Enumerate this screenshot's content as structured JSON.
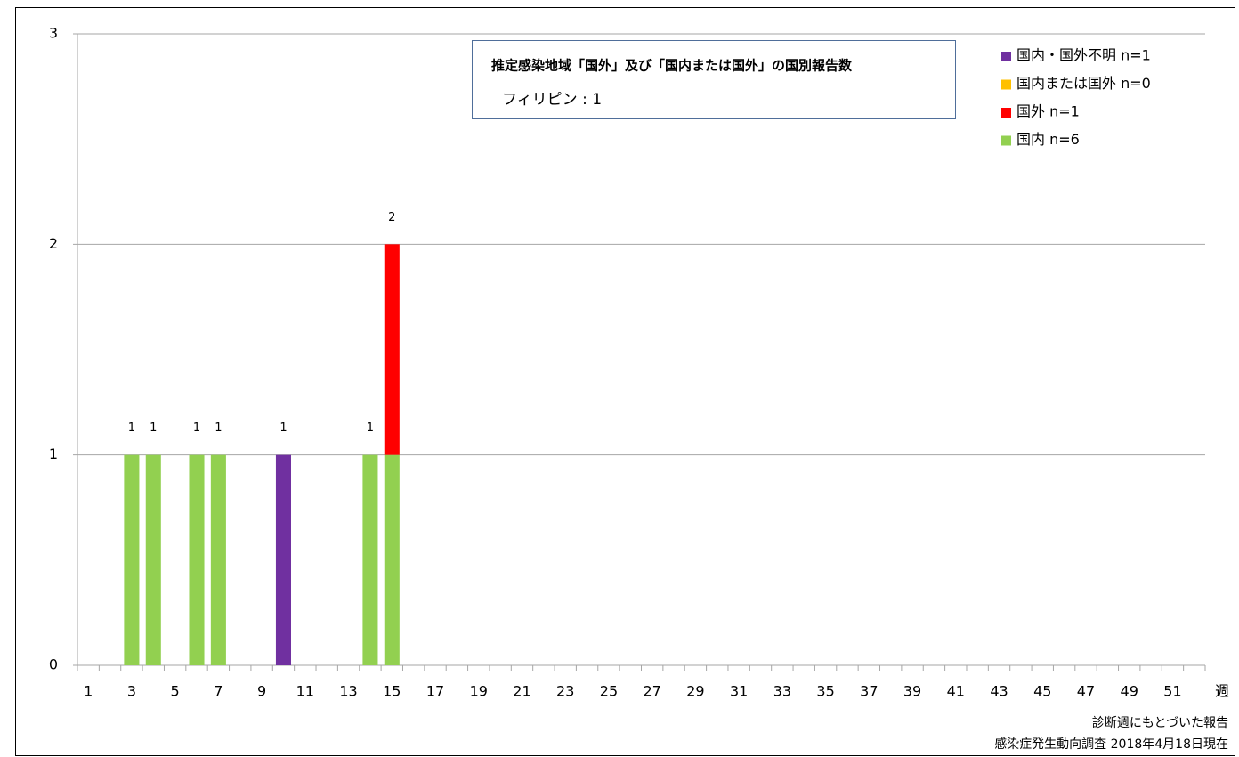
{
  "chart_data": {
    "type": "stacked-bar",
    "categories": [
      1,
      null,
      3,
      null,
      5,
      null,
      7,
      null,
      9,
      null,
      11,
      null,
      13,
      null,
      15,
      null,
      17,
      null,
      19,
      null,
      21,
      null,
      23,
      null,
      25,
      null,
      27,
      null,
      29,
      null,
      31,
      null,
      33,
      null,
      35,
      null,
      37,
      null,
      39,
      null,
      41,
      null,
      43,
      null,
      45,
      null,
      47,
      null,
      49,
      null,
      51,
      null
    ],
    "x_label": "週",
    "series": [
      {
        "name": "国内 n=6",
        "color": "#92d050",
        "values": [
          0,
          0,
          1,
          1,
          0,
          1,
          1,
          0,
          0,
          0,
          0,
          0,
          0,
          1,
          1,
          0,
          0,
          0,
          0,
          0,
          0,
          0,
          0,
          0,
          0,
          0,
          0,
          0,
          0,
          0,
          0,
          0,
          0,
          0,
          0,
          0,
          0,
          0,
          0,
          0,
          0,
          0,
          0,
          0,
          0,
          0,
          0,
          0,
          0,
          0,
          0,
          0
        ]
      },
      {
        "name": "国外 n=1",
        "color": "#ff0000",
        "values": [
          0,
          0,
          0,
          0,
          0,
          0,
          0,
          0,
          0,
          0,
          0,
          0,
          0,
          0,
          1,
          0,
          0,
          0,
          0,
          0,
          0,
          0,
          0,
          0,
          0,
          0,
          0,
          0,
          0,
          0,
          0,
          0,
          0,
          0,
          0,
          0,
          0,
          0,
          0,
          0,
          0,
          0,
          0,
          0,
          0,
          0,
          0,
          0,
          0,
          0,
          0,
          0
        ]
      },
      {
        "name": "国内または国外 n=0",
        "color": "#ffc000",
        "values": [
          0,
          0,
          0,
          0,
          0,
          0,
          0,
          0,
          0,
          0,
          0,
          0,
          0,
          0,
          0,
          0,
          0,
          0,
          0,
          0,
          0,
          0,
          0,
          0,
          0,
          0,
          0,
          0,
          0,
          0,
          0,
          0,
          0,
          0,
          0,
          0,
          0,
          0,
          0,
          0,
          0,
          0,
          0,
          0,
          0,
          0,
          0,
          0,
          0,
          0,
          0,
          0
        ]
      },
      {
        "name": "国内・国外不明 n=1",
        "color": "#7030a0",
        "values": [
          0,
          0,
          0,
          0,
          0,
          0,
          0,
          0,
          0,
          1,
          0,
          0,
          0,
          0,
          0,
          0,
          0,
          0,
          0,
          0,
          0,
          0,
          0,
          0,
          0,
          0,
          0,
          0,
          0,
          0,
          0,
          0,
          0,
          0,
          0,
          0,
          0,
          0,
          0,
          0,
          0,
          0,
          0,
          0,
          0,
          0,
          0,
          0,
          0,
          0,
          0,
          0
        ]
      }
    ],
    "totals": [
      null,
      null,
      1,
      1,
      null,
      1,
      1,
      null,
      null,
      1,
      null,
      null,
      null,
      1,
      2,
      null,
      null,
      null,
      null,
      null,
      null,
      null,
      null,
      null,
      null,
      null,
      null,
      null,
      null,
      null,
      null,
      null,
      null,
      null,
      null,
      null,
      null,
      null,
      null,
      null,
      null,
      null,
      null,
      null,
      null,
      null,
      null,
      null,
      null,
      null,
      null,
      null
    ],
    "ylim": [
      0,
      3
    ],
    "yticks": [
      0,
      1,
      2,
      3
    ],
    "grid": true,
    "box_title": "推定感染地域「国外」及び「国内または国外」の国別報告数",
    "box_text": "フィリピン : 1",
    "notes": [
      "診断週にもとづいた報告",
      "感染症発生動向調査 2018年4月18日現在"
    ]
  }
}
